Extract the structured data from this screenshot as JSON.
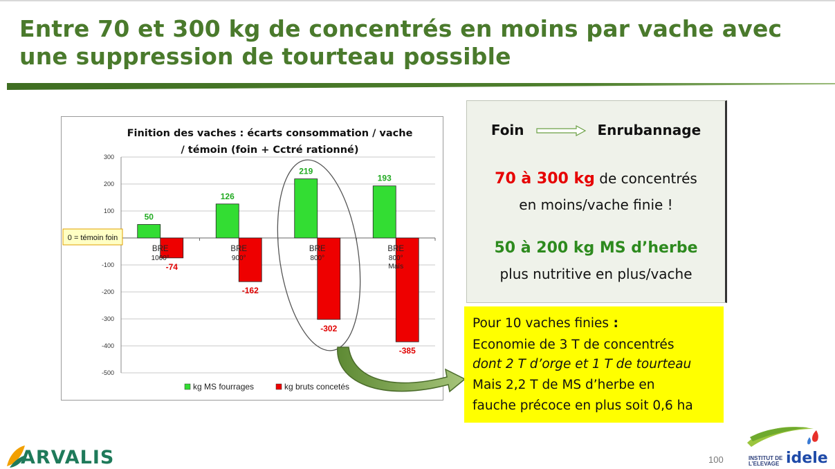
{
  "slide": {
    "title": "Entre 70 et 300 kg de concentrés en moins par vache avec une suppression de tourteau possible",
    "page_number": "100"
  },
  "chart_data": {
    "type": "bar",
    "title_line1": "Finition des vaches : écarts consommation / vache",
    "title_line2": "/ témoin (foin + Cctré rationné)",
    "categories": [
      {
        "line1": "BRE",
        "line2": "1000°",
        "line3": ""
      },
      {
        "line1": "BRE",
        "line2": "900°",
        "line3": ""
      },
      {
        "line1": "BRE",
        "line2": "800°",
        "line3": ""
      },
      {
        "line1": "BRE",
        "line2": "800°",
        "line3": "Maïs"
      }
    ],
    "series": [
      {
        "name": "kg MS fourrages",
        "color": "#33dd33",
        "values": [
          50,
          126,
          219,
          193
        ],
        "labels": [
          "50",
          "126",
          "219",
          "193"
        ]
      },
      {
        "name": "kg bruts concetés",
        "color": "#ee0000",
        "values": [
          -74,
          -162,
          -302,
          -385
        ],
        "labels": [
          "-74",
          "-162",
          "-302",
          "-385"
        ]
      }
    ],
    "ylim": [
      -500,
      300
    ],
    "yticks": [
      "300",
      "200",
      "100",
      "0",
      "-100",
      "-200",
      "-300",
      "-400",
      "-500"
    ],
    "grid": true,
    "legend": "bottom",
    "annotation": "0 = témoin foin",
    "highlight": "ellipse around third category"
  },
  "foin_box": {
    "from": "Foin",
    "to": "Enrubannage",
    "line1_bold": "70 à 300 kg",
    "line1_rest": " de concentrés",
    "line2": "en moins/vache finie !",
    "line3_bold": "50 à 200 kg MS d’herbe",
    "line4": "plus nutritive en plus/vache"
  },
  "yellow_box": {
    "heading": "Pour 10 vaches finies",
    "heading_suffix": " :",
    "line1": "Economie de 3 T de concentrés",
    "line2": "dont 2 T d’orge et 1 T de tourteau",
    "line3": "Mais 2,2 T de MS d’herbe en",
    "line4": "fauche précoce en plus soit 0,6 ha"
  },
  "logos": {
    "arvalis": "ARVALIS",
    "idele_small_1": "INSTITUT DE",
    "idele_small_2": "L’ELEVAGE",
    "idele_big": "idele"
  }
}
